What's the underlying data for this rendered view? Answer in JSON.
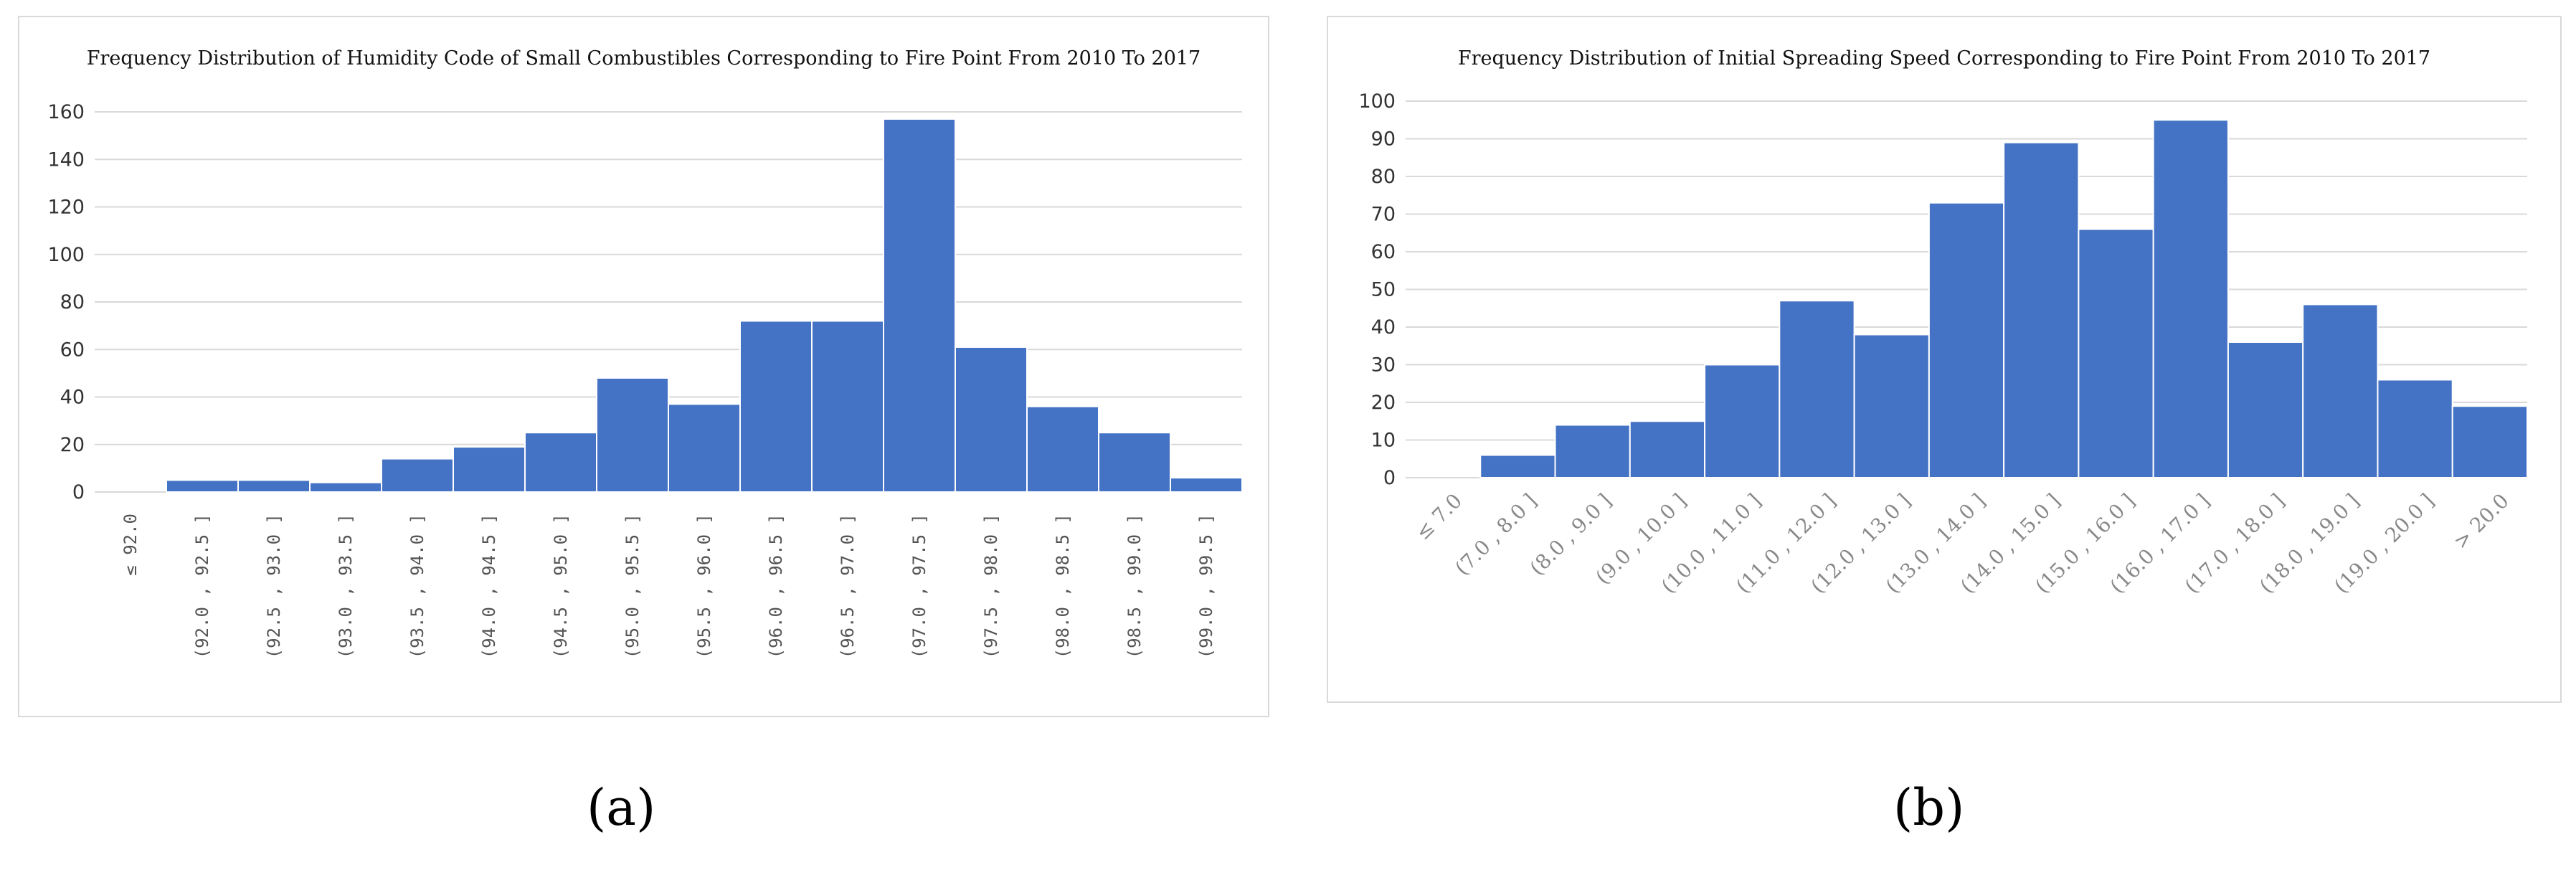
{
  "chart_data": [
    {
      "type": "bar",
      "title": "Frequency Distribution of Humidity Code of Small Combustibles Corresponding to Fire Point From 2010 To 2017",
      "xlabel": "",
      "ylabel": "",
      "ylim": [
        0,
        160
      ],
      "yticks": [
        "0",
        "20",
        "40",
        "60",
        "80",
        "100",
        "120",
        "140",
        "160"
      ],
      "grid": true,
      "categories": [
        "≤ 92.0",
        "(92.0 , 92.5 ]",
        "(92.5 , 93.0 ]",
        "(93.0 , 93.5 ]",
        "(93.5 , 94.0 ]",
        "(94.0 , 94.5 ]",
        "(94.5 , 95.0 ]",
        "(95.0 , 95.5 ]",
        "(95.5 , 96.0 ]",
        "(96.0 , 96.5 ]",
        "(96.5 , 97.0 ]",
        "(97.0 , 97.5 ]",
        "(97.5 , 98.0 ]",
        "(98.0 , 98.5 ]",
        "(98.5 , 99.0 ]",
        "(99.0 , 99.5 ]"
      ],
      "values": [
        0,
        5,
        5,
        4,
        14,
        19,
        25,
        48,
        37,
        72,
        72,
        157,
        61,
        36,
        25,
        6
      ],
      "bar_color": "#4472c4"
    },
    {
      "type": "bar",
      "title": "Frequency Distribution of Initial Spreading Speed Corresponding to Fire Point From 2010 To 2017",
      "xlabel": "",
      "ylabel": "",
      "ylim": [
        0,
        100
      ],
      "yticks": [
        "0",
        "10",
        "20",
        "30",
        "40",
        "50",
        "60",
        "70",
        "80",
        "90",
        "100"
      ],
      "grid": true,
      "categories": [
        "≤ 7.0",
        "(7.0 , 8.0 ]",
        "(8.0 , 9.0 ]",
        "(9.0 , 10.0 ]",
        "(10.0 , 11.0 ]",
        "(11.0 , 12.0 ]",
        "(12.0 , 13.0 ]",
        "(13.0 , 14.0 ]",
        "(14.0 , 15.0 ]",
        "(15.0 , 16.0 ]",
        "(16.0 , 17.0 ]",
        "(17.0 , 18.0 ]",
        "(18.0 , 19.0 ]",
        "(19.0 , 20.0 ]",
        "> 20.0"
      ],
      "values": [
        0,
        6,
        14,
        15,
        30,
        47,
        38,
        73,
        89,
        66,
        95,
        36,
        46,
        26,
        19
      ],
      "bar_color": "#4472c4"
    }
  ],
  "captions": {
    "a": "(a)",
    "b": "(b)"
  }
}
